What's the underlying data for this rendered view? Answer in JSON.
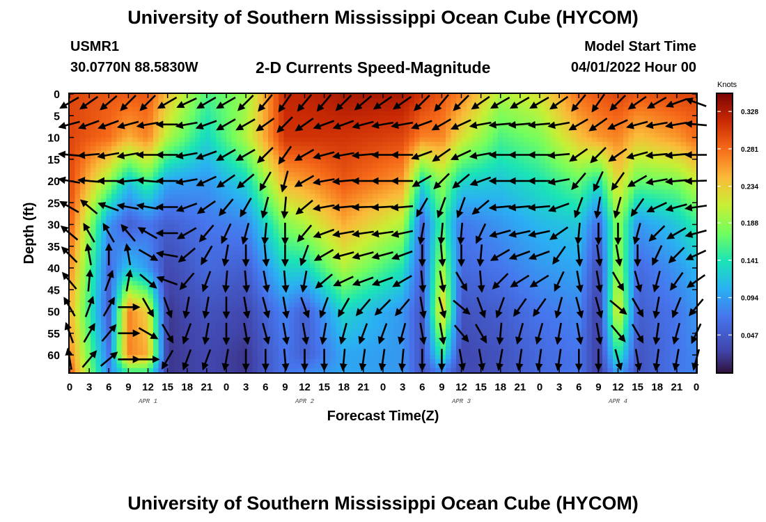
{
  "header": {
    "title": "University of Southern Mississippi Ocean Cube (HYCOM)",
    "station_id": "USMR1",
    "coordinates": "30.0770N  88.5830W",
    "product": "2-D Currents Speed-Magnitude",
    "start_label": "Model Start Time",
    "start_value": "04/01/2022 Hour 00"
  },
  "footer": {
    "title": "University of Southern Mississippi Ocean Cube (HYCOM)"
  },
  "chart_data": {
    "type": "heatmap",
    "xlabel": "Forecast Time(Z)",
    "ylabel": "Depth (ft)",
    "x_ticks": [
      "0",
      "3",
      "6",
      "9",
      "12",
      "15",
      "18",
      "21",
      "0",
      "3",
      "6",
      "9",
      "12",
      "15",
      "18",
      "21",
      "0",
      "3",
      "6",
      "9",
      "12",
      "15",
      "18",
      "21",
      "0",
      "3",
      "6",
      "9",
      "12",
      "15",
      "18",
      "21",
      "0"
    ],
    "x_range_hours": [
      0,
      96
    ],
    "date_labels": [
      {
        "label": "APR 1",
        "hour": 12
      },
      {
        "label": "APR 2",
        "hour": 36
      },
      {
        "label": "APR 3",
        "hour": 60
      },
      {
        "label": "APR 4",
        "hour": 84
      }
    ],
    "y_ticks": [
      0,
      5,
      10,
      15,
      20,
      25,
      30,
      35,
      40,
      45,
      50,
      55,
      60
    ],
    "y_range_ft": [
      0,
      64
    ],
    "y_inverted": true,
    "colorbar": {
      "title": "Knots",
      "ticks": [
        "0.328",
        "0.281",
        "0.234",
        "0.188",
        "0.141",
        "0.094",
        "0.047"
      ],
      "range": [
        0,
        0.35
      ]
    },
    "speed_grid_hours": [
      0,
      6,
      9,
      12,
      15,
      21,
      27,
      33,
      36,
      42,
      51,
      54,
      57,
      60,
      66,
      72,
      78,
      81,
      84,
      87,
      93,
      96
    ],
    "speed_grid_depths_ft": [
      0,
      10,
      20,
      30,
      40,
      50,
      60,
      64
    ],
    "speed_knots": [
      [
        0.3,
        0.3,
        0.3,
        0.29,
        0.27,
        0.25,
        0.27,
        0.29
      ],
      [
        0.29,
        0.28,
        0.19,
        0.09,
        0.06,
        0.05,
        0.07,
        0.08
      ],
      [
        0.29,
        0.25,
        0.12,
        0.05,
        0.12,
        0.27,
        0.27,
        0.15
      ],
      [
        0.29,
        0.27,
        0.16,
        0.07,
        0.09,
        0.23,
        0.25,
        0.15
      ],
      [
        0.24,
        0.2,
        0.1,
        0.05,
        0.03,
        0.02,
        0.02,
        0.02
      ],
      [
        0.16,
        0.13,
        0.09,
        0.07,
        0.06,
        0.04,
        0.03,
        0.03
      ],
      [
        0.19,
        0.2,
        0.13,
        0.08,
        0.05,
        0.03,
        0.02,
        0.02
      ],
      [
        0.32,
        0.31,
        0.25,
        0.18,
        0.13,
        0.08,
        0.07,
        0.07
      ],
      [
        0.32,
        0.31,
        0.26,
        0.2,
        0.13,
        0.05,
        0.05,
        0.08
      ],
      [
        0.33,
        0.31,
        0.29,
        0.25,
        0.2,
        0.13,
        0.1,
        0.1
      ],
      [
        0.33,
        0.3,
        0.26,
        0.2,
        0.14,
        0.09,
        0.09,
        0.09
      ],
      [
        0.31,
        0.27,
        0.14,
        0.06,
        0.05,
        0.04,
        0.04,
        0.04
      ],
      [
        0.29,
        0.27,
        0.19,
        0.16,
        0.2,
        0.24,
        0.15,
        0.08
      ],
      [
        0.27,
        0.22,
        0.13,
        0.07,
        0.06,
        0.04,
        0.03,
        0.03
      ],
      [
        0.2,
        0.16,
        0.12,
        0.09,
        0.07,
        0.05,
        0.04,
        0.04
      ],
      [
        0.22,
        0.18,
        0.14,
        0.11,
        0.09,
        0.07,
        0.06,
        0.06
      ],
      [
        0.28,
        0.24,
        0.17,
        0.12,
        0.1,
        0.08,
        0.07,
        0.07
      ],
      [
        0.29,
        0.26,
        0.14,
        0.06,
        0.03,
        0.02,
        0.02,
        0.02
      ],
      [
        0.3,
        0.27,
        0.23,
        0.19,
        0.2,
        0.23,
        0.15,
        0.1
      ],
      [
        0.29,
        0.24,
        0.17,
        0.09,
        0.06,
        0.05,
        0.04,
        0.04
      ],
      [
        0.3,
        0.26,
        0.18,
        0.12,
        0.09,
        0.07,
        0.07,
        0.07
      ],
      [
        0.3,
        0.28,
        0.21,
        0.15,
        0.11,
        0.09,
        0.08,
        0.08
      ]
    ],
    "arrow_hours": [
      0,
      3,
      6,
      9,
      12,
      15,
      18,
      21,
      24,
      27,
      30,
      33,
      36,
      39,
      42,
      45,
      48,
      51,
      54,
      57,
      60,
      63,
      66,
      69,
      72,
      75,
      78,
      81,
      84,
      87,
      90,
      93,
      96
    ],
    "arrow_depths_ft": [
      2,
      7,
      14,
      20,
      26,
      32,
      37,
      43,
      49,
      55,
      61
    ],
    "arrow_direction_deg_by_hour": [
      [
        210,
        195,
        175,
        170,
        150,
        140,
        135,
        130,
        120,
        110,
        100
      ],
      [
        215,
        200,
        185,
        175,
        140,
        120,
        100,
        85,
        70,
        60,
        50
      ],
      [
        220,
        200,
        190,
        180,
        160,
        120,
        90,
        70,
        60,
        50,
        40
      ],
      [
        225,
        195,
        190,
        185,
        170,
        130,
        100,
        80,
        0,
        0,
        0
      ],
      [
        225,
        190,
        180,
        175,
        170,
        150,
        330,
        320,
        300,
        330,
        0
      ],
      [
        210,
        180,
        180,
        180,
        180,
        180,
        170,
        160,
        290,
        300,
        240
      ],
      [
        205,
        190,
        190,
        190,
        200,
        210,
        220,
        230,
        260,
        250,
        250
      ],
      [
        210,
        200,
        200,
        205,
        215,
        230,
        240,
        250,
        260,
        260,
        250
      ],
      [
        210,
        210,
        210,
        215,
        230,
        245,
        260,
        265,
        270,
        270,
        260
      ],
      [
        225,
        210,
        210,
        220,
        240,
        255,
        270,
        275,
        280,
        280,
        270
      ],
      [
        230,
        215,
        225,
        240,
        255,
        265,
        275,
        280,
        285,
        285,
        270
      ],
      [
        235,
        225,
        235,
        255,
        265,
        270,
        270,
        275,
        280,
        280,
        275
      ],
      [
        230,
        215,
        210,
        210,
        220,
        230,
        250,
        260,
        290,
        280,
        270
      ],
      [
        230,
        200,
        195,
        190,
        190,
        200,
        210,
        220,
        250,
        260,
        270
      ],
      [
        225,
        200,
        190,
        185,
        185,
        190,
        195,
        205,
        240,
        255,
        265
      ],
      [
        220,
        195,
        185,
        180,
        182,
        188,
        195,
        200,
        230,
        250,
        262
      ],
      [
        215,
        190,
        180,
        180,
        183,
        188,
        195,
        200,
        225,
        250,
        262
      ],
      [
        215,
        190,
        180,
        180,
        185,
        192,
        200,
        210,
        230,
        255,
        265
      ],
      [
        225,
        200,
        200,
        210,
        240,
        260,
        270,
        275,
        280,
        280,
        270
      ],
      [
        230,
        210,
        215,
        225,
        250,
        265,
        275,
        280,
        285,
        280,
        270
      ],
      [
        225,
        205,
        205,
        220,
        250,
        265,
        270,
        300,
        320,
        310,
        280
      ],
      [
        215,
        190,
        190,
        200,
        220,
        245,
        265,
        275,
        290,
        300,
        280
      ],
      [
        210,
        185,
        180,
        180,
        185,
        195,
        210,
        225,
        250,
        265,
        260
      ],
      [
        210,
        185,
        180,
        180,
        185,
        192,
        200,
        212,
        235,
        255,
        262
      ],
      [
        210,
        185,
        180,
        180,
        185,
        192,
        200,
        212,
        235,
        255,
        262
      ],
      [
        215,
        190,
        185,
        190,
        200,
        215,
        235,
        245,
        255,
        260,
        262
      ],
      [
        230,
        210,
        215,
        230,
        250,
        265,
        275,
        280,
        285,
        280,
        270
      ],
      [
        235,
        215,
        225,
        245,
        260,
        270,
        278,
        280,
        285,
        280,
        270
      ],
      [
        225,
        205,
        215,
        235,
        255,
        270,
        280,
        300,
        320,
        310,
        285
      ],
      [
        215,
        195,
        195,
        210,
        235,
        255,
        270,
        285,
        300,
        300,
        280
      ],
      [
        210,
        190,
        185,
        190,
        205,
        225,
        245,
        255,
        260,
        262,
        262
      ],
      [
        200,
        190,
        185,
        185,
        195,
        210,
        225,
        235,
        248,
        255,
        260
      ],
      [
        160,
        175,
        180,
        182,
        188,
        195,
        205,
        215,
        230,
        245,
        255
      ]
    ]
  }
}
